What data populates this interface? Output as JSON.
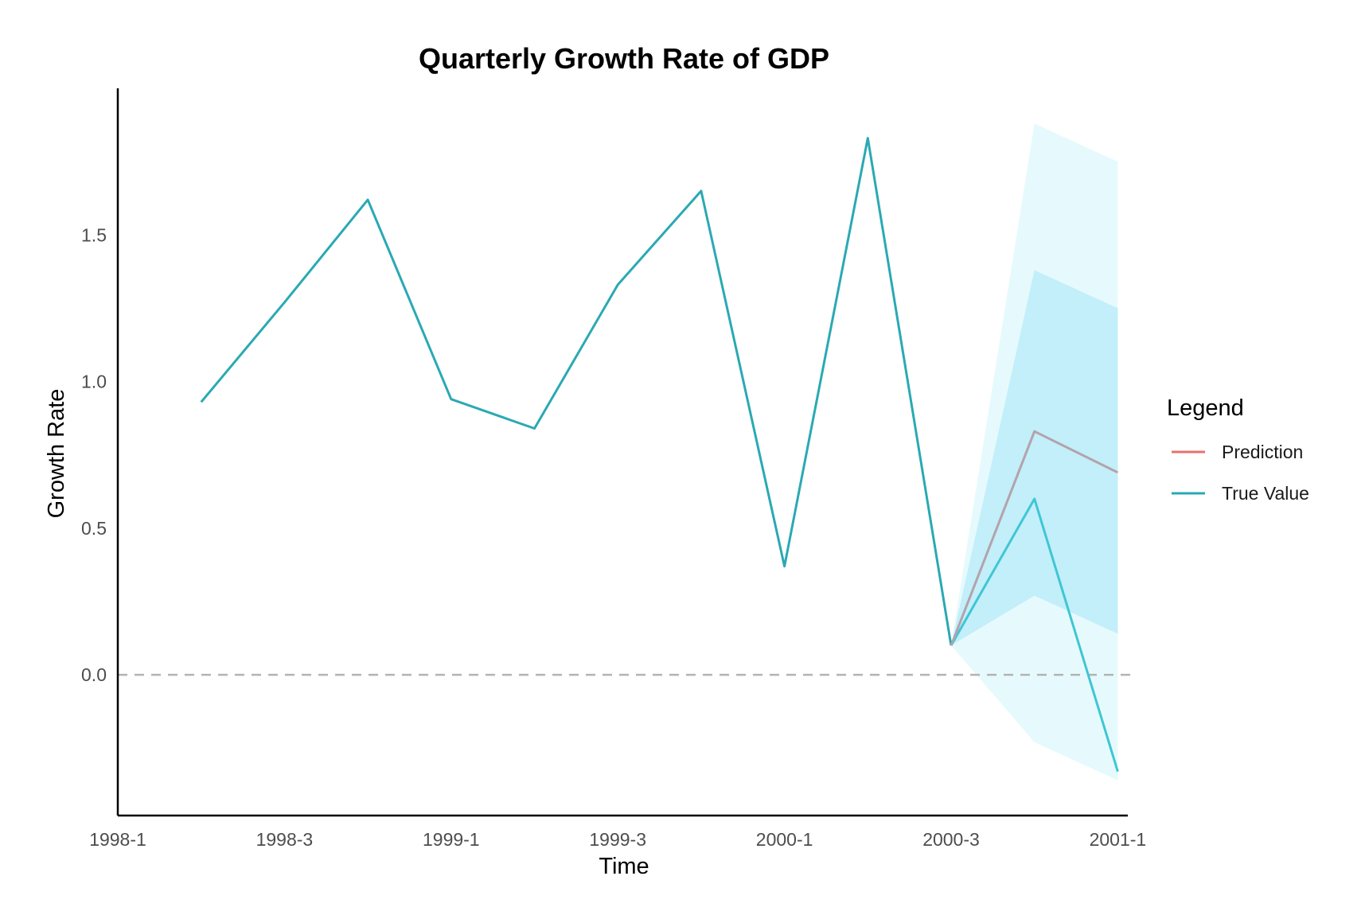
{
  "chart_data": {
    "type": "line",
    "title": "Quarterly Growth Rate of GDP",
    "xlabel": "Time",
    "ylabel": "Growth Rate",
    "x_ticks": [
      "1998-1",
      "1998-3",
      "1999-1",
      "1999-3",
      "2000-1",
      "2000-3",
      "2001-1"
    ],
    "y_ticks": [
      "0.0",
      "0.5",
      "1.0",
      "1.5"
    ],
    "ylim": [
      -0.48,
      2.0
    ],
    "grid": false,
    "reference_line": {
      "y": 0.0,
      "style": "dashed",
      "color": "#b3b3b3"
    },
    "x": [
      "1998-2",
      "1998-3",
      "1998-4",
      "1999-1",
      "1999-2",
      "1999-3",
      "1999-4",
      "2000-1",
      "2000-2",
      "2000-3",
      "2000-4",
      "2001-1"
    ],
    "series": [
      {
        "name": "True Value",
        "color": "#2aa9b3",
        "x": [
          "1998-2",
          "1998-3",
          "1998-4",
          "1999-1",
          "1999-2",
          "1999-3",
          "1999-4",
          "2000-1",
          "2000-2",
          "2000-3"
        ],
        "values": [
          0.93,
          1.27,
          1.62,
          0.94,
          0.84,
          1.33,
          1.65,
          0.37,
          1.83,
          0.1
        ]
      },
      {
        "name": "True Value",
        "color": "#3fc6d4",
        "x": [
          "2000-3",
          "2000-4",
          "2001-1"
        ],
        "values": [
          0.1,
          0.6,
          -0.33
        ]
      },
      {
        "name": "Prediction",
        "color": "#b3a3ac",
        "x": [
          "2000-3",
          "2000-4",
          "2001-1"
        ],
        "values": [
          0.1,
          0.83,
          0.69
        ]
      }
    ],
    "intervals": [
      {
        "level": "outer",
        "color": "#e6fafd",
        "x": [
          "2000-3",
          "2000-4",
          "2001-1"
        ],
        "lower": [
          0.1,
          -0.23,
          -0.36
        ],
        "upper": [
          0.1,
          1.88,
          1.75
        ]
      },
      {
        "level": "inner",
        "color": "#c2eff9",
        "x": [
          "2000-3",
          "2000-4",
          "2001-1"
        ],
        "lower": [
          0.1,
          0.27,
          0.14
        ],
        "upper": [
          0.1,
          1.38,
          1.25
        ]
      }
    ],
    "legend": {
      "title": "Legend",
      "placement": "right",
      "entries": [
        {
          "label": "Prediction",
          "color": "#e8726c"
        },
        {
          "label": "True Value",
          "color": "#2aa9b3"
        }
      ]
    }
  }
}
